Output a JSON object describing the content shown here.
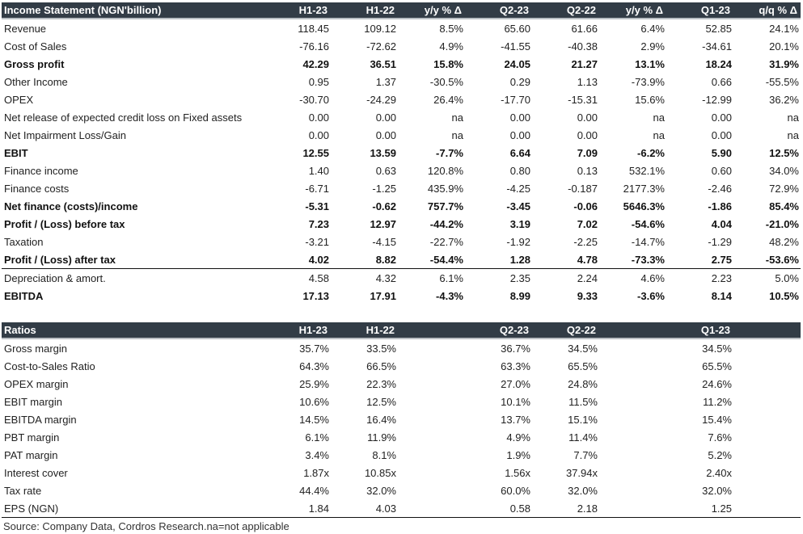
{
  "income": {
    "headers": [
      "Income Statement (NGN'billion)",
      "H1-23",
      "H1-22",
      "y/y % Δ",
      "Q2-23",
      "Q2-22",
      "y/y % Δ",
      "Q1-23",
      "q/q % Δ"
    ],
    "rows": [
      {
        "label": "Revenue",
        "bold": false,
        "values": [
          "118.45",
          "109.12",
          "8.5%",
          "65.60",
          "61.66",
          "6.4%",
          "52.85",
          "24.1%"
        ]
      },
      {
        "label": "Cost of Sales",
        "bold": false,
        "values": [
          "-76.16",
          "-72.62",
          "4.9%",
          "-41.55",
          "-40.38",
          "2.9%",
          "-34.61",
          "20.1%"
        ]
      },
      {
        "label": "Gross profit",
        "bold": true,
        "values": [
          "42.29",
          "36.51",
          "15.8%",
          "24.05",
          "21.27",
          "13.1%",
          "18.24",
          "31.9%"
        ]
      },
      {
        "label": "Other Income",
        "bold": false,
        "values": [
          "0.95",
          "1.37",
          "-30.5%",
          "0.29",
          "1.13",
          "-73.9%",
          "0.66",
          "-55.5%"
        ]
      },
      {
        "label": "OPEX",
        "bold": false,
        "values": [
          "-30.70",
          "-24.29",
          "26.4%",
          "-17.70",
          "-15.31",
          "15.6%",
          "-12.99",
          "36.2%"
        ]
      },
      {
        "label": "Net release of expected credit loss on Fixed assets",
        "bold": false,
        "values": [
          "0.00",
          "0.00",
          "na",
          "0.00",
          "0.00",
          "na",
          "0.00",
          "na"
        ]
      },
      {
        "label": "Net Impairment Loss/Gain",
        "bold": false,
        "values": [
          "0.00",
          "0.00",
          "na",
          "0.00",
          "0.00",
          "na",
          "0.00",
          "na"
        ]
      },
      {
        "label": "EBIT",
        "bold": true,
        "values": [
          "12.55",
          "13.59",
          "-7.7%",
          "6.64",
          "7.09",
          "-6.2%",
          "5.90",
          "12.5%"
        ]
      },
      {
        "label": "Finance income",
        "bold": false,
        "values": [
          "1.40",
          "0.63",
          "120.8%",
          "0.80",
          "0.13",
          "532.1%",
          "0.60",
          "34.0%"
        ]
      },
      {
        "label": "Finance costs",
        "bold": false,
        "values": [
          "-6.71",
          "-1.25",
          "435.9%",
          "-4.25",
          "-0.187",
          "2177.3%",
          "-2.46",
          "72.9%"
        ]
      },
      {
        "label": "Net finance (costs)/income",
        "bold": true,
        "values": [
          "-5.31",
          "-0.62",
          "757.7%",
          "-3.45",
          "-0.06",
          "5646.3%",
          "-1.86",
          "85.4%"
        ]
      },
      {
        "label": "Profit / (Loss) before tax",
        "bold": true,
        "values": [
          "7.23",
          "12.97",
          "-44.2%",
          "3.19",
          "7.02",
          "-54.6%",
          "4.04",
          "-21.0%"
        ]
      },
      {
        "label": "Taxation",
        "bold": false,
        "values": [
          "-3.21",
          "-4.15",
          "-22.7%",
          "-1.92",
          "-2.25",
          "-14.7%",
          "-1.29",
          "48.2%"
        ]
      },
      {
        "label": "Profit / (Loss) after tax",
        "bold": true,
        "sep": true,
        "values": [
          "4.02",
          "8.82",
          "-54.4%",
          "1.28",
          "4.78",
          "-73.3%",
          "2.75",
          "-53.6%"
        ]
      },
      {
        "label": "Depreciation & amort.",
        "bold": false,
        "values": [
          "4.58",
          "4.32",
          "6.1%",
          "2.35",
          "2.24",
          "4.6%",
          "2.23",
          "5.0%"
        ]
      },
      {
        "label": "EBITDA",
        "bold": true,
        "values": [
          "17.13",
          "17.91",
          "-4.3%",
          "8.99",
          "9.33",
          "-3.6%",
          "8.14",
          "10.5%"
        ]
      }
    ]
  },
  "ratios": {
    "headers": [
      "Ratios",
      "H1-23",
      "H1-22",
      "",
      "Q2-23",
      "Q2-22",
      "",
      "Q1-23",
      ""
    ],
    "rows": [
      {
        "label": "Gross margin",
        "values": [
          "35.7%",
          "33.5%",
          "",
          "36.7%",
          "34.5%",
          "",
          "34.5%",
          ""
        ]
      },
      {
        "label": "Cost-to-Sales Ratio",
        "values": [
          "64.3%",
          "66.5%",
          "",
          "63.3%",
          "65.5%",
          "",
          "65.5%",
          ""
        ]
      },
      {
        "label": "OPEX margin",
        "values": [
          "25.9%",
          "22.3%",
          "",
          "27.0%",
          "24.8%",
          "",
          "24.6%",
          ""
        ]
      },
      {
        "label": "EBIT margin",
        "values": [
          "10.6%",
          "12.5%",
          "",
          "10.1%",
          "11.5%",
          "",
          "11.2%",
          ""
        ]
      },
      {
        "label": "EBITDA margin",
        "values": [
          "14.5%",
          "16.4%",
          "",
          "13.7%",
          "15.1%",
          "",
          "15.4%",
          ""
        ]
      },
      {
        "label": "PBT margin",
        "values": [
          "6.1%",
          "11.9%",
          "",
          "4.9%",
          "11.4%",
          "",
          "7.6%",
          ""
        ]
      },
      {
        "label": "PAT margin",
        "values": [
          "3.4%",
          "8.1%",
          "",
          "1.9%",
          "7.7%",
          "",
          "5.2%",
          ""
        ]
      },
      {
        "label": "Interest cover",
        "values": [
          "1.87x",
          "10.85x",
          "",
          "1.56x",
          "37.94x",
          "",
          "2.40x",
          ""
        ]
      },
      {
        "label": "Tax rate",
        "values": [
          "44.4%",
          "32.0%",
          "",
          "60.0%",
          "32.0%",
          "",
          "32.0%",
          ""
        ]
      },
      {
        "label": "EPS (NGN)",
        "sep": true,
        "values": [
          "1.84",
          "4.03",
          "",
          "0.58",
          "2.18",
          "",
          "1.25",
          ""
        ]
      }
    ]
  },
  "source": "Source: Company Data, Cordros Research.na=not applicable"
}
